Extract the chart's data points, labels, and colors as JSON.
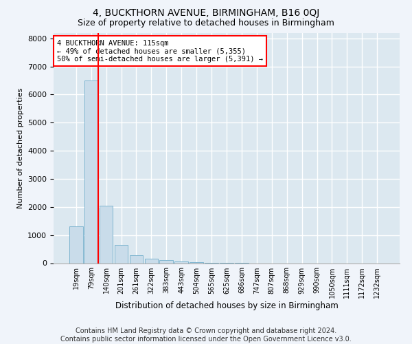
{
  "title": "4, BUCKTHORN AVENUE, BIRMINGHAM, B16 0QJ",
  "subtitle": "Size of property relative to detached houses in Birmingham",
  "xlabel": "Distribution of detached houses by size in Birmingham",
  "ylabel": "Number of detached properties",
  "bar_labels": [
    "19sqm",
    "79sqm",
    "140sqm",
    "201sqm",
    "261sqm",
    "322sqm",
    "383sqm",
    "443sqm",
    "504sqm",
    "565sqm",
    "625sqm",
    "686sqm",
    "747sqm",
    "807sqm",
    "868sqm",
    "929sqm",
    "990sqm",
    "1050sqm",
    "1111sqm",
    "1172sqm",
    "1232sqm"
  ],
  "bar_values": [
    1300,
    6500,
    2050,
    650,
    290,
    155,
    105,
    60,
    35,
    15,
    5,
    5,
    0,
    0,
    0,
    0,
    0,
    0,
    0,
    0,
    0
  ],
  "bar_color": "#c9dcea",
  "bar_edge_color": "#7fb5d0",
  "vline_color": "red",
  "annotation_text": "4 BUCKTHORN AVENUE: 115sqm\n← 49% of detached houses are smaller (5,355)\n50% of semi-detached houses are larger (5,391) →",
  "annotation_box_color": "white",
  "annotation_box_edgecolor": "red",
  "ylim": [
    0,
    8200
  ],
  "yticks": [
    0,
    1000,
    2000,
    3000,
    4000,
    5000,
    6000,
    7000,
    8000
  ],
  "background_color": "#f0f4fa",
  "plot_bg_color": "#dce8f0",
  "footer_line1": "Contains HM Land Registry data © Crown copyright and database right 2024.",
  "footer_line2": "Contains public sector information licensed under the Open Government Licence v3.0.",
  "title_fontsize": 10,
  "subtitle_fontsize": 9,
  "footer_fontsize": 7
}
